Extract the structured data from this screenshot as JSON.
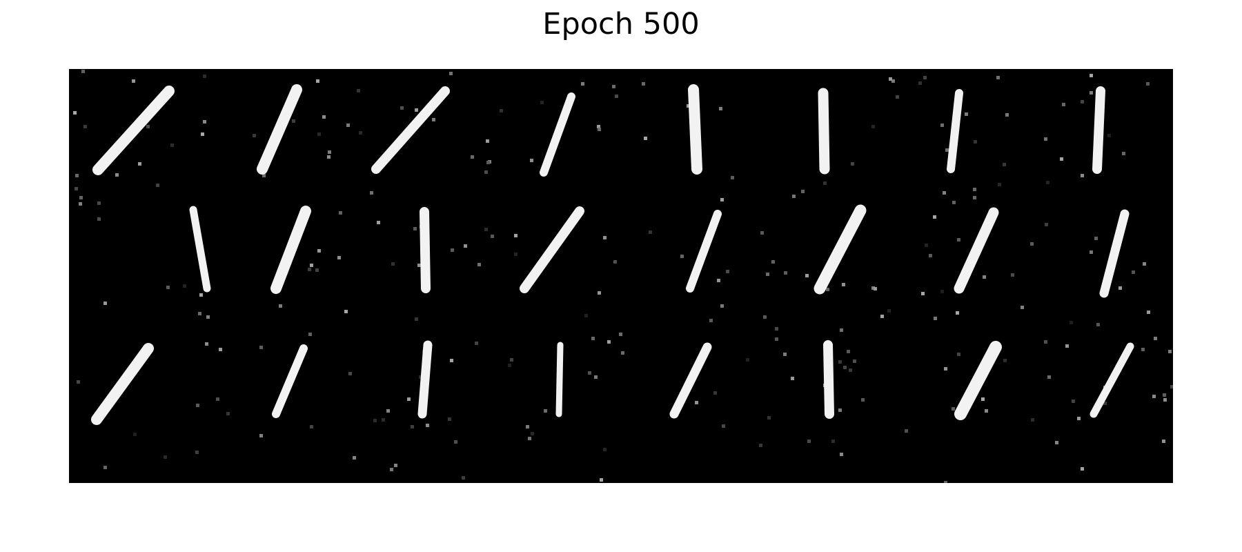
{
  "title": "Epoch 500",
  "image": {
    "description_kind": "generated-digit-samples",
    "rows": 3,
    "cols": 8,
    "background_color": "#000000",
    "stroke_color": "#ffffff"
  }
}
